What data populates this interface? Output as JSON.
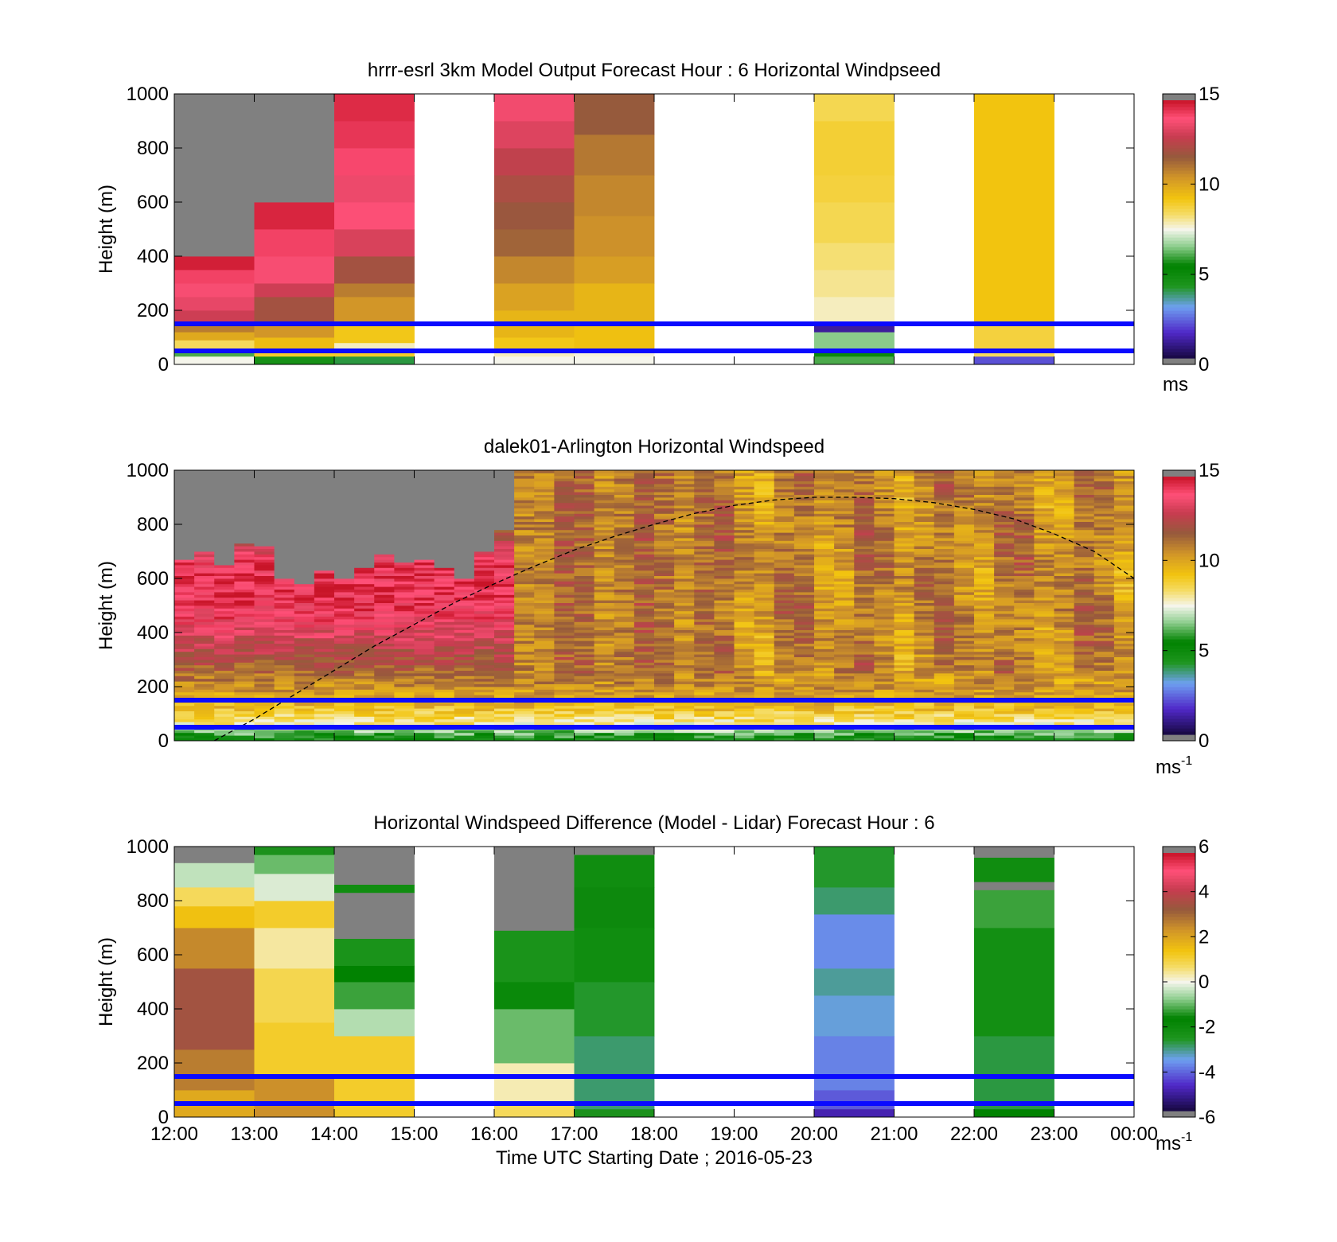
{
  "figure": {
    "xlabel": "Time UTC  Starting Date ; 2016-05-23",
    "x_ticks": [
      "12:00",
      "13:00",
      "14:00",
      "15:00",
      "16:00",
      "17:00",
      "18:00",
      "19:00",
      "20:00",
      "21:00",
      "22:00",
      "23:00",
      "00:00"
    ]
  },
  "colors": {
    "reference_lines": "#0a0aff",
    "missing": "#808080",
    "axes": "#000000"
  },
  "chart_data": [
    {
      "type": "heatmap",
      "title": "hrrr-esrl 3km Model Output   Forecast Hour : 6 Horizontal Windpseed",
      "ylabel": "Height (m)",
      "xlim": [
        12,
        24
      ],
      "ylim": [
        0,
        1000
      ],
      "y_ticks": [
        "0",
        "200",
        "400",
        "600",
        "800",
        "1000"
      ],
      "reference_lines_m": [
        50,
        150
      ],
      "colorbar": {
        "ticks": [
          "0",
          "5",
          "10",
          "15"
        ],
        "unit": "ms",
        "range": [
          0,
          15
        ]
      },
      "columns": [
        {
          "x_start": 12,
          "cells": [
            [
              0,
              30,
              7.5
            ],
            [
              30,
              60,
              6
            ],
            [
              60,
              90,
              8.5
            ],
            [
              90,
              120,
              10
            ],
            [
              120,
              150,
              11
            ],
            [
              150,
              200,
              13
            ],
            [
              200,
              250,
              13.5
            ],
            [
              250,
              300,
              13.8
            ],
            [
              300,
              350,
              14.2
            ],
            [
              350,
              400,
              14.8
            ],
            [
              400,
              1000,
              null
            ]
          ]
        },
        {
          "x_start": 13,
          "cells": [
            [
              0,
              30,
              4.5
            ],
            [
              30,
              60,
              9
            ],
            [
              60,
              100,
              9.5
            ],
            [
              100,
              150,
              10.5
            ],
            [
              150,
              250,
              12
            ],
            [
              250,
              300,
              13
            ],
            [
              300,
              400,
              13.8
            ],
            [
              400,
              500,
              14.2
            ],
            [
              500,
              600,
              14.7
            ],
            [
              600,
              1000,
              null
            ]
          ]
        },
        {
          "x_start": 14,
          "cells": [
            [
              0,
              30,
              4
            ],
            [
              30,
              60,
              9
            ],
            [
              60,
              80,
              7.8
            ],
            [
              80,
              150,
              9.2
            ],
            [
              150,
              250,
              10.5
            ],
            [
              250,
              300,
              11
            ],
            [
              300,
              400,
              12
            ],
            [
              400,
              500,
              13.2
            ],
            [
              500,
              600,
              13.9
            ],
            [
              600,
              700,
              13.6
            ],
            [
              700,
              800,
              14.1
            ],
            [
              800,
              900,
              14.4
            ],
            [
              900,
              1000,
              14.6
            ]
          ]
        },
        {
          "x_start": 15,
          "cells": []
        },
        {
          "x_start": 16,
          "cells": [
            [
              0,
              30,
              7.5
            ],
            [
              30,
              60,
              7.8
            ],
            [
              60,
              100,
              9.2
            ],
            [
              100,
              200,
              9.7
            ],
            [
              200,
              300,
              10.2
            ],
            [
              300,
              400,
              10.8
            ],
            [
              400,
              500,
              11.5
            ],
            [
              500,
              600,
              11.8
            ],
            [
              600,
              700,
              12.2
            ],
            [
              700,
              800,
              12.7
            ],
            [
              800,
              900,
              13.3
            ],
            [
              900,
              1000,
              13.7
            ]
          ]
        },
        {
          "x_start": 17,
          "cells": [
            [
              0,
              30,
              7.5
            ],
            [
              30,
              60,
              7.6
            ],
            [
              60,
              150,
              9.4
            ],
            [
              150,
              300,
              9.7
            ],
            [
              300,
              400,
              10.3
            ],
            [
              400,
              550,
              10.6
            ],
            [
              550,
              700,
              10.8
            ],
            [
              700,
              850,
              11.1
            ],
            [
              850,
              1000,
              11.7
            ]
          ]
        },
        {
          "x_start": 18,
          "cells": []
        },
        {
          "x_start": 19,
          "cells": []
        },
        {
          "x_start": 20,
          "cells": [
            [
              0,
              30,
              6
            ],
            [
              30,
              60,
              5.5
            ],
            [
              60,
              120,
              6.5
            ],
            [
              120,
              150,
              1
            ],
            [
              150,
              250,
              7.8
            ],
            [
              250,
              350,
              8.1
            ],
            [
              350,
              450,
              8.3
            ],
            [
              450,
              600,
              8.6
            ],
            [
              600,
              700,
              8.8
            ],
            [
              700,
              900,
              8.9
            ],
            [
              900,
              1000,
              8.6
            ]
          ]
        },
        {
          "x_start": 21,
          "cells": []
        },
        {
          "x_start": 22,
          "cells": [
            [
              0,
              30,
              2
            ],
            [
              30,
              60,
              8.5
            ],
            [
              60,
              150,
              8.8
            ],
            [
              150,
              1000,
              9.3
            ]
          ]
        },
        {
          "x_start": 23,
          "cells": []
        }
      ]
    },
    {
      "type": "heatmap",
      "title": "dalek01-Arlington  Horizontal Windspeed",
      "ylabel": "Height (m)",
      "xlim": [
        12,
        24
      ],
      "ylim": [
        0,
        1000
      ],
      "y_ticks": [
        "0",
        "200",
        "400",
        "600",
        "800",
        "1000"
      ],
      "reference_lines_m": [
        50,
        150
      ],
      "colorbar": {
        "ticks": [
          "0",
          "5",
          "10",
          "15"
        ],
        "unit": "ms-1",
        "range": [
          0,
          15
        ]
      },
      "data_end_x": 23.95,
      "column_step_h": 0.25,
      "missing_above_m": [
        670,
        700,
        650,
        730,
        720,
        600,
        580,
        630,
        600,
        640,
        690,
        660,
        670,
        640,
        600,
        700,
        780,
        1000,
        1000,
        1000,
        1000,
        1000,
        1000,
        1000,
        1000,
        1000,
        1000,
        1000,
        1000,
        1000,
        1000,
        1000,
        1000,
        1000,
        1000,
        1000,
        1000,
        1000,
        1000,
        1000,
        1000,
        1000,
        1000,
        1000,
        1000,
        1000,
        1000,
        1000
      ],
      "profile_m": [
        0,
        20,
        60,
        120,
        220,
        330,
        450,
        560,
        650,
        720,
        760,
        790
      ],
      "profile_ms": [
        5,
        6,
        8,
        9.5,
        11,
        12.5,
        14,
        14.6,
        14.3,
        13,
        12,
        12.5
      ],
      "dashed_curve": {
        "x": [
          12.5,
          13,
          13.5,
          14,
          14.5,
          15,
          15.5,
          16,
          16.5,
          17,
          17.5,
          18,
          18.5,
          19,
          19.5,
          20,
          20.5,
          21,
          21.5,
          22,
          22.5,
          23,
          23.5,
          24
        ],
        "y": [
          0,
          80,
          170,
          260,
          350,
          430,
          510,
          580,
          645,
          705,
          755,
          800,
          840,
          870,
          890,
          900,
          900,
          895,
          880,
          855,
          820,
          765,
          700,
          600
        ]
      }
    },
    {
      "type": "heatmap",
      "title": "Horizontal Windspeed Difference (Model - Lidar) Forecast Hour : 6",
      "ylabel": "Height (m)",
      "xlim": [
        12,
        24
      ],
      "ylim": [
        0,
        1000
      ],
      "y_ticks": [
        "0",
        "200",
        "400",
        "600",
        "800",
        "1000"
      ],
      "reference_lines_m": [
        50,
        150
      ],
      "colorbar": {
        "ticks": [
          "-6",
          "-4",
          "-2",
          "0",
          "2",
          "4",
          "6"
        ],
        "unit": "ms-1",
        "range": [
          -6,
          6
        ]
      },
      "columns": [
        {
          "x_start": 12,
          "cells": [
            [
              0,
              100,
              2
            ],
            [
              100,
              250,
              2.8
            ],
            [
              250,
              550,
              3.6
            ],
            [
              550,
              700,
              2.6
            ],
            [
              700,
              780,
              1.5
            ],
            [
              780,
              850,
              0.8
            ],
            [
              850,
              940,
              -0.4
            ],
            [
              940,
              1000,
              null
            ]
          ]
        },
        {
          "x_start": 13,
          "cells": [
            [
              0,
              150,
              2.5
            ],
            [
              150,
              350,
              1.2
            ],
            [
              350,
              550,
              0.9
            ],
            [
              550,
              700,
              0.4
            ],
            [
              700,
              800,
              1.2
            ],
            [
              800,
              900,
              -0.2
            ],
            [
              900,
              970,
              -1
            ],
            [
              970,
              1000,
              -1.5
            ]
          ]
        },
        {
          "x_start": 14,
          "cells": [
            [
              0,
              300,
              1.2
            ],
            [
              300,
              400,
              -0.5
            ],
            [
              400,
              500,
              -1.3
            ],
            [
              500,
              560,
              -1.7
            ],
            [
              560,
              660,
              -2.5
            ],
            [
              660,
              830,
              null
            ],
            [
              830,
              860,
              -2.2
            ],
            [
              860,
              1000,
              null
            ]
          ]
        },
        {
          "x_start": 15,
          "cells": []
        },
        {
          "x_start": 16,
          "cells": [
            [
              0,
              60,
              0.8
            ],
            [
              60,
              200,
              0.3
            ],
            [
              200,
              400,
              -1
            ],
            [
              400,
              500,
              -2
            ],
            [
              500,
              690,
              -2.5
            ],
            [
              690,
              1000,
              null
            ]
          ]
        },
        {
          "x_start": 17,
          "cells": [
            [
              0,
              30,
              -1.5
            ],
            [
              30,
              300,
              -3
            ],
            [
              300,
              500,
              -2.7
            ],
            [
              500,
              700,
              -2.2
            ],
            [
              700,
              850,
              -1.6
            ],
            [
              850,
              970,
              -2.2
            ],
            [
              970,
              1000,
              null
            ]
          ]
        },
        {
          "x_start": 18,
          "cells": []
        },
        {
          "x_start": 19,
          "cells": []
        },
        {
          "x_start": 20,
          "cells": [
            [
              0,
              30,
              -5
            ],
            [
              30,
              100,
              -4.3
            ],
            [
              100,
              300,
              -3.9
            ],
            [
              300,
              450,
              -3.5
            ],
            [
              450,
              550,
              -3.2
            ],
            [
              550,
              750,
              -3.8
            ],
            [
              750,
              850,
              -3
            ],
            [
              850,
              1000,
              -2.7
            ]
          ]
        },
        {
          "x_start": 21,
          "cells": []
        },
        {
          "x_start": 22,
          "cells": [
            [
              0,
              30,
              -1.7
            ],
            [
              30,
              300,
              -2.8
            ],
            [
              300,
              700,
              -2.3
            ],
            [
              700,
              840,
              -1.3
            ],
            [
              840,
              870,
              null
            ],
            [
              870,
              960,
              -2.2
            ],
            [
              960,
              1000,
              null
            ]
          ]
        },
        {
          "x_start": 23,
          "cells": []
        }
      ]
    }
  ]
}
